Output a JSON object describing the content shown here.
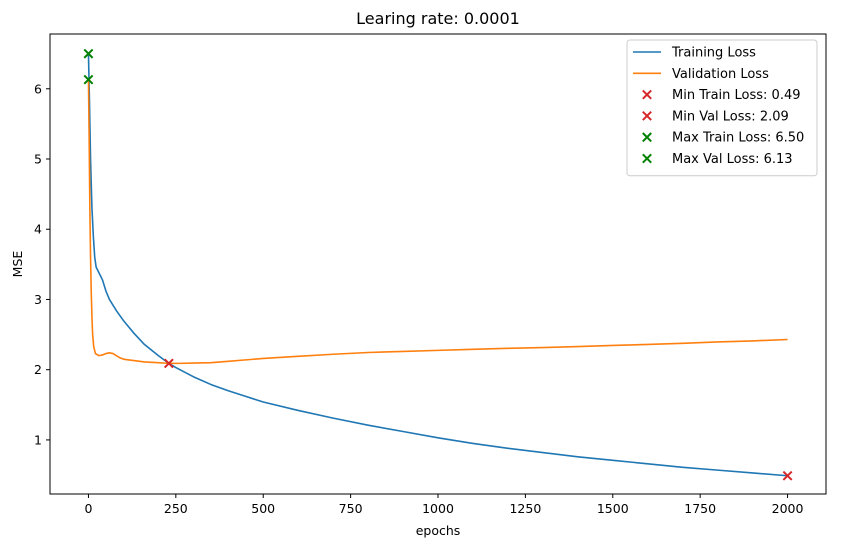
{
  "chart_data": {
    "type": "line",
    "title": "Learing rate: 0.0001",
    "xlabel": "epochs",
    "ylabel": "MSE",
    "xlim": [
      -110,
      2110
    ],
    "ylim": [
      0.23,
      6.78
    ],
    "x_ticks": [
      0,
      250,
      500,
      750,
      1000,
      1250,
      1500,
      1750,
      2000
    ],
    "y_ticks": [
      1,
      2,
      3,
      4,
      5,
      6
    ],
    "legend_position": "top-right",
    "series": [
      {
        "name": "Training Loss",
        "color": "#1f77b4",
        "points": [
          [
            0,
            6.5
          ],
          [
            3,
            5.8
          ],
          [
            6,
            5.0
          ],
          [
            10,
            4.3
          ],
          [
            14,
            3.9
          ],
          [
            18,
            3.6
          ],
          [
            22,
            3.46
          ],
          [
            30,
            3.38
          ],
          [
            40,
            3.28
          ],
          [
            50,
            3.12
          ],
          [
            60,
            3.0
          ],
          [
            80,
            2.84
          ],
          [
            100,
            2.7
          ],
          [
            130,
            2.52
          ],
          [
            160,
            2.36
          ],
          [
            200,
            2.2
          ],
          [
            230,
            2.09
          ],
          [
            250,
            2.03
          ],
          [
            300,
            1.9
          ],
          [
            350,
            1.79
          ],
          [
            400,
            1.7
          ],
          [
            450,
            1.62
          ],
          [
            500,
            1.54
          ],
          [
            600,
            1.42
          ],
          [
            700,
            1.31
          ],
          [
            800,
            1.21
          ],
          [
            900,
            1.12
          ],
          [
            1000,
            1.03
          ],
          [
            1100,
            0.95
          ],
          [
            1200,
            0.88
          ],
          [
            1300,
            0.82
          ],
          [
            1400,
            0.76
          ],
          [
            1500,
            0.71
          ],
          [
            1600,
            0.66
          ],
          [
            1700,
            0.61
          ],
          [
            1800,
            0.57
          ],
          [
            1900,
            0.53
          ],
          [
            2000,
            0.49
          ]
        ]
      },
      {
        "name": "Validation Loss",
        "color": "#ff7f0e",
        "points": [
          [
            0,
            6.13
          ],
          [
            2,
            5.3
          ],
          [
            4,
            4.3
          ],
          [
            6,
            3.6
          ],
          [
            8,
            3.1
          ],
          [
            10,
            2.75
          ],
          [
            12,
            2.5
          ],
          [
            15,
            2.33
          ],
          [
            20,
            2.23
          ],
          [
            30,
            2.2
          ],
          [
            40,
            2.21
          ],
          [
            50,
            2.23
          ],
          [
            60,
            2.24
          ],
          [
            70,
            2.23
          ],
          [
            80,
            2.2
          ],
          [
            90,
            2.17
          ],
          [
            100,
            2.15
          ],
          [
            130,
            2.13
          ],
          [
            160,
            2.11
          ],
          [
            200,
            2.1
          ],
          [
            230,
            2.09
          ],
          [
            260,
            2.09
          ],
          [
            300,
            2.095
          ],
          [
            350,
            2.1
          ],
          [
            400,
            2.12
          ],
          [
            450,
            2.14
          ],
          [
            500,
            2.16
          ],
          [
            600,
            2.19
          ],
          [
            700,
            2.22
          ],
          [
            800,
            2.245
          ],
          [
            900,
            2.26
          ],
          [
            1000,
            2.275
          ],
          [
            1100,
            2.29
          ],
          [
            1200,
            2.305
          ],
          [
            1300,
            2.315
          ],
          [
            1400,
            2.33
          ],
          [
            1500,
            2.345
          ],
          [
            1600,
            2.36
          ],
          [
            1700,
            2.375
          ],
          [
            1800,
            2.395
          ],
          [
            1900,
            2.41
          ],
          [
            2000,
            2.43
          ]
        ]
      }
    ],
    "markers": [
      {
        "label": "Min Train Loss: 0.49",
        "x": 2000,
        "y": 0.49,
        "color": "#d62728"
      },
      {
        "label": "Min Val Loss: 2.09",
        "x": 230,
        "y": 2.09,
        "color": "#d62728"
      },
      {
        "label": "Max Train Loss: 6.50",
        "x": 0,
        "y": 6.5,
        "color": "#008000"
      },
      {
        "label": "Max Val Loss: 6.13",
        "x": 0,
        "y": 6.13,
        "color": "#008000"
      }
    ]
  }
}
